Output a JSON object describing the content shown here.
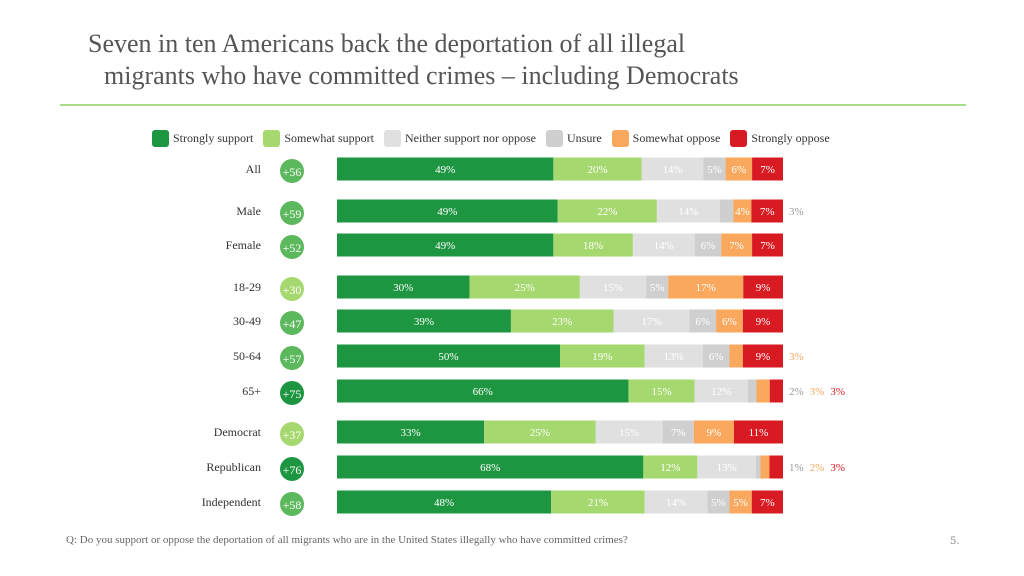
{
  "title": [
    "Seven in ten Americans back the deportation of all illegal",
    "migrants who have committed crimes – including Democrats"
  ],
  "footnote": "Q: Do you support or oppose the deportation of all migrants who are in the United States illegally who have committed crimes?",
  "page_number": "5.",
  "chart_data": {
    "type": "bar",
    "orientation": "horizontal",
    "stacked": true,
    "legend_placement": "top",
    "series": [
      {
        "name": "Strongly support",
        "color": "#1e9641",
        "text_color": "#ffffff"
      },
      {
        "name": "Somewhat support",
        "color": "#a5d86e",
        "text_color": "#ffffff"
      },
      {
        "name": "Neither support nor oppose",
        "color": "#e0e0e0",
        "text_color": "#ffffff"
      },
      {
        "name": "Unsure",
        "color": "#cfcfcf",
        "text_color": "#ffffff"
      },
      {
        "name": "Somewhat oppose",
        "color": "#f9a85e",
        "text_color": "#ffffff"
      },
      {
        "name": "Strongly oppose",
        "color": "#d81b22",
        "text_color": "#ffffff"
      }
    ],
    "rows": [
      {
        "label": "All",
        "net": "+56",
        "values": [
          49,
          20,
          14,
          5,
          6,
          7
        ]
      },
      {
        "label": "Male",
        "net": "+59",
        "values": [
          49,
          22,
          14,
          3,
          4,
          7
        ]
      },
      {
        "label": "Female",
        "net": "+52",
        "values": [
          49,
          18,
          14,
          6,
          7,
          7
        ]
      },
      {
        "label": "18-29",
        "net": "+30",
        "values": [
          30,
          25,
          15,
          5,
          17,
          9
        ]
      },
      {
        "label": "30-49",
        "net": "+47",
        "values": [
          39,
          23,
          17,
          6,
          6,
          9
        ]
      },
      {
        "label": "50-64",
        "net": "+57",
        "values": [
          50,
          19,
          13,
          6,
          3,
          9
        ]
      },
      {
        "label": "65+",
        "net": "+75",
        "values": [
          66,
          15,
          12,
          2,
          3,
          3
        ]
      },
      {
        "label": "Democrat",
        "net": "+37",
        "values": [
          33,
          25,
          15,
          7,
          9,
          11
        ]
      },
      {
        "label": "Republican",
        "net": "+76",
        "values": [
          68,
          12,
          13,
          1,
          2,
          3
        ]
      },
      {
        "label": "Independent",
        "net": "+58",
        "values": [
          48,
          21,
          14,
          5,
          5,
          7
        ]
      }
    ]
  }
}
